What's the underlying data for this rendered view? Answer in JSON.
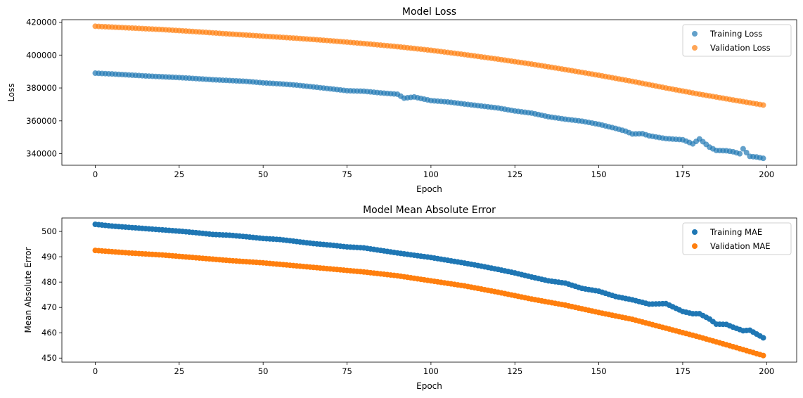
{
  "chart_data": [
    {
      "type": "scatter",
      "title": "Model Loss",
      "xlabel": "Epoch",
      "ylabel": "Loss",
      "xlim": [
        -9.95,
        208.95
      ],
      "ylim": [
        333000,
        421500
      ],
      "xticks": [
        0,
        25,
        50,
        75,
        100,
        125,
        150,
        175,
        200
      ],
      "yticks": [
        340000,
        360000,
        380000,
        400000,
        420000
      ],
      "alpha": 0.7,
      "legend": "top-right",
      "series": [
        {
          "name": "Training Loss",
          "color": "#1f77b4",
          "x": [
            0,
            5,
            10,
            15,
            20,
            25,
            30,
            35,
            40,
            45,
            50,
            55,
            60,
            65,
            70,
            75,
            80,
            85,
            90,
            92,
            95,
            100,
            105,
            110,
            115,
            120,
            125,
            130,
            135,
            140,
            145,
            150,
            155,
            158,
            160,
            163,
            165,
            170,
            175,
            178,
            180,
            183,
            185,
            188,
            190,
            192,
            193,
            195,
            197,
            199
          ],
          "y": [
            389000,
            388500,
            387900,
            387300,
            386800,
            386300,
            385700,
            385000,
            384500,
            384000,
            383100,
            382500,
            381700,
            380600,
            379500,
            378300,
            378000,
            377000,
            376200,
            373800,
            374500,
            372300,
            371500,
            370200,
            369000,
            367800,
            366000,
            364700,
            362500,
            361000,
            359800,
            357900,
            355400,
            353700,
            352000,
            352200,
            350900,
            349200,
            348500,
            346000,
            349000,
            344000,
            342000,
            341800,
            341200,
            340000,
            343000,
            338400,
            338000,
            337200
          ]
        },
        {
          "name": "Validation Loss",
          "color": "#ff7f0e",
          "x": [
            0,
            10,
            20,
            30,
            40,
            50,
            60,
            70,
            80,
            90,
            100,
            110,
            120,
            130,
            140,
            150,
            160,
            170,
            180,
            190,
            199
          ],
          "y": [
            417500,
            416500,
            415500,
            414200,
            412800,
            411500,
            410200,
            408700,
            407000,
            405100,
            402900,
            400300,
            397500,
            394500,
            391200,
            387700,
            384000,
            380000,
            376200,
            372700,
            369600
          ]
        }
      ]
    },
    {
      "type": "scatter",
      "title": "Model Mean Absolute Error",
      "xlabel": "Epoch",
      "ylabel": "Mean Absolute Error",
      "xlim": [
        -9.95,
        208.95
      ],
      "ylim": [
        448.4,
        505.3
      ],
      "xticks": [
        0,
        25,
        50,
        75,
        100,
        125,
        150,
        175,
        200
      ],
      "yticks": [
        450,
        460,
        470,
        480,
        490,
        500
      ],
      "alpha": 1.0,
      "legend": "top-right",
      "series": [
        {
          "name": "Training MAE",
          "color": "#1f77b4",
          "x": [
            0,
            5,
            10,
            15,
            20,
            25,
            30,
            35,
            40,
            45,
            50,
            55,
            60,
            65,
            70,
            75,
            80,
            85,
            90,
            95,
            100,
            105,
            110,
            115,
            120,
            125,
            130,
            135,
            140,
            145,
            150,
            155,
            160,
            165,
            170,
            175,
            178,
            180,
            183,
            185,
            188,
            190,
            193,
            195,
            197,
            199
          ],
          "y": [
            502.8,
            502.1,
            501.6,
            501.1,
            500.6,
            500.1,
            499.5,
            498.8,
            498.5,
            497.9,
            497.2,
            496.8,
            496.0,
            495.2,
            494.6,
            493.9,
            493.5,
            492.5,
            491.5,
            490.6,
            489.7,
            488.6,
            487.5,
            486.3,
            485.0,
            483.6,
            482.0,
            480.5,
            479.6,
            477.5,
            476.4,
            474.3,
            473.0,
            471.3,
            471.5,
            468.4,
            467.5,
            467.5,
            465.4,
            463.4,
            463.3,
            462.2,
            460.8,
            461.0,
            459.5,
            458.0
          ]
        },
        {
          "name": "Validation MAE",
          "color": "#ff7f0e",
          "x": [
            0,
            10,
            20,
            30,
            40,
            50,
            60,
            70,
            80,
            90,
            100,
            110,
            120,
            130,
            140,
            150,
            160,
            170,
            180,
            190,
            199
          ],
          "y": [
            492.5,
            491.5,
            490.7,
            489.6,
            488.5,
            487.6,
            486.4,
            485.2,
            484.0,
            482.5,
            480.5,
            478.5,
            476.0,
            473.3,
            470.9,
            468.0,
            465.3,
            461.8,
            458.3,
            454.5,
            451.0
          ]
        }
      ]
    }
  ]
}
